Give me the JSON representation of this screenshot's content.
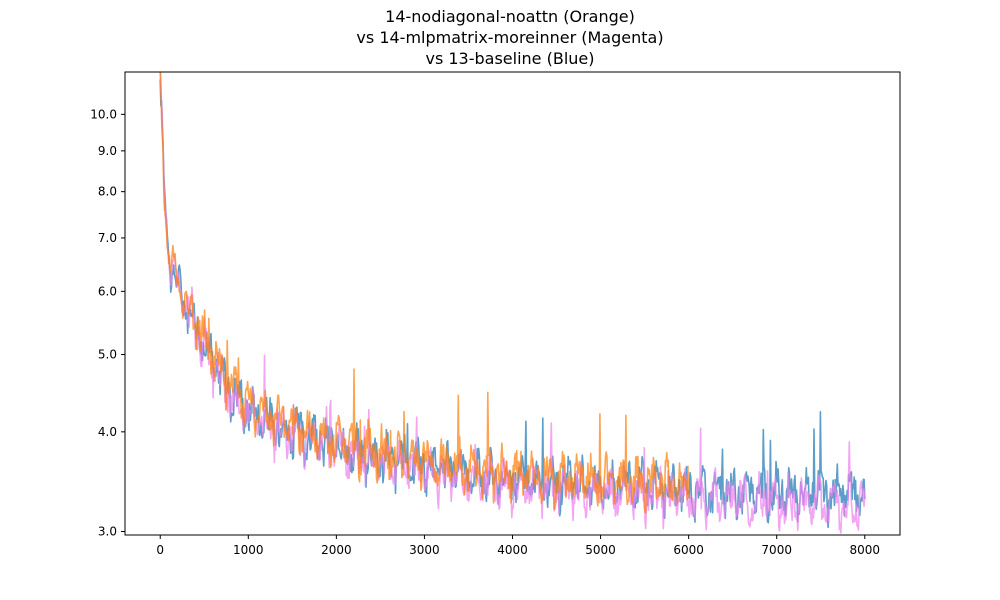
{
  "chart_data": {
    "type": "line",
    "title_lines": [
      "14-nodiagonal-noattn (Orange)",
      "vs 14-mlpmatrix-moreinner (Magenta)",
      "vs 13-baseline (Blue)"
    ],
    "xlabel": "",
    "ylabel": "",
    "y_scale": "log",
    "xlim": [
      -400,
      8400
    ],
    "ylim": [
      2.97,
      11.3
    ],
    "x_ticks": [
      0,
      1000,
      2000,
      3000,
      4000,
      5000,
      6000,
      7000,
      8000
    ],
    "x_tick_labels": [
      "0",
      "1000",
      "2000",
      "3000",
      "4000",
      "5000",
      "6000",
      "7000",
      "8000"
    ],
    "y_ticks": [
      3.0,
      4.0,
      5.0,
      6.0,
      7.0,
      8.0,
      9.0,
      10.0
    ],
    "y_tick_labels": [
      "3.0",
      "4.0",
      "5.0",
      "6.0",
      "7.0",
      "8.0",
      "9.0",
      "10.0"
    ],
    "grid": false,
    "legend": "none",
    "series": [
      {
        "color": "#1f77b4",
        "x": [
          0,
          50,
          100,
          200,
          300,
          400,
          500,
          600,
          700,
          800,
          900,
          1000,
          1200,
          1400,
          1600,
          1800,
          2000,
          2200,
          2500,
          2800,
          3000,
          3300,
          3600,
          4000,
          4400,
          4800,
          5200,
          5600,
          6000,
          6500,
          7000,
          7500,
          8000
        ],
        "y": [
          10.8,
          7.9,
          6.6,
          6.1,
          5.75,
          5.45,
          5.15,
          4.9,
          4.7,
          4.5,
          4.38,
          4.28,
          4.14,
          4.05,
          3.97,
          3.9,
          3.84,
          3.78,
          3.72,
          3.67,
          3.63,
          3.58,
          3.54,
          3.5,
          3.47,
          3.45,
          3.43,
          3.41,
          3.39,
          3.37,
          3.36,
          3.35,
          3.34
        ]
      },
      {
        "color": "#ee82ee",
        "x": [
          0,
          50,
          100,
          200,
          300,
          400,
          500,
          600,
          700,
          800,
          900,
          1000,
          1200,
          1400,
          1600,
          1800,
          2000,
          2200,
          2500,
          2800,
          3000,
          3300,
          3600,
          4000,
          4400,
          4800,
          5200,
          5600,
          6000,
          6500,
          7000,
          7500,
          8000
        ],
        "y": [
          10.8,
          7.9,
          6.6,
          6.1,
          5.74,
          5.43,
          5.12,
          4.87,
          4.66,
          4.46,
          4.34,
          4.24,
          4.1,
          4.01,
          3.93,
          3.86,
          3.8,
          3.74,
          3.67,
          3.62,
          3.58,
          3.53,
          3.49,
          3.44,
          3.4,
          3.37,
          3.35,
          3.33,
          3.31,
          3.29,
          3.27,
          3.26,
          3.25
        ]
      },
      {
        "color": "#ff7f0e",
        "x": [
          0,
          50,
          100,
          200,
          300,
          400,
          500,
          600,
          700,
          800,
          900,
          1000,
          1200,
          1400,
          1600,
          1800,
          2000,
          2200,
          2500,
          2800,
          3000,
          3300,
          3600,
          4000,
          4400,
          4800,
          5200,
          5600,
          6000
        ],
        "y": [
          10.8,
          7.9,
          6.65,
          6.15,
          5.8,
          5.5,
          5.22,
          4.98,
          4.78,
          4.58,
          4.45,
          4.35,
          4.2,
          4.1,
          4.02,
          3.95,
          3.88,
          3.83,
          3.77,
          3.72,
          3.68,
          3.63,
          3.59,
          3.55,
          3.52,
          3.49,
          3.47,
          3.45,
          3.43
        ]
      }
    ]
  }
}
